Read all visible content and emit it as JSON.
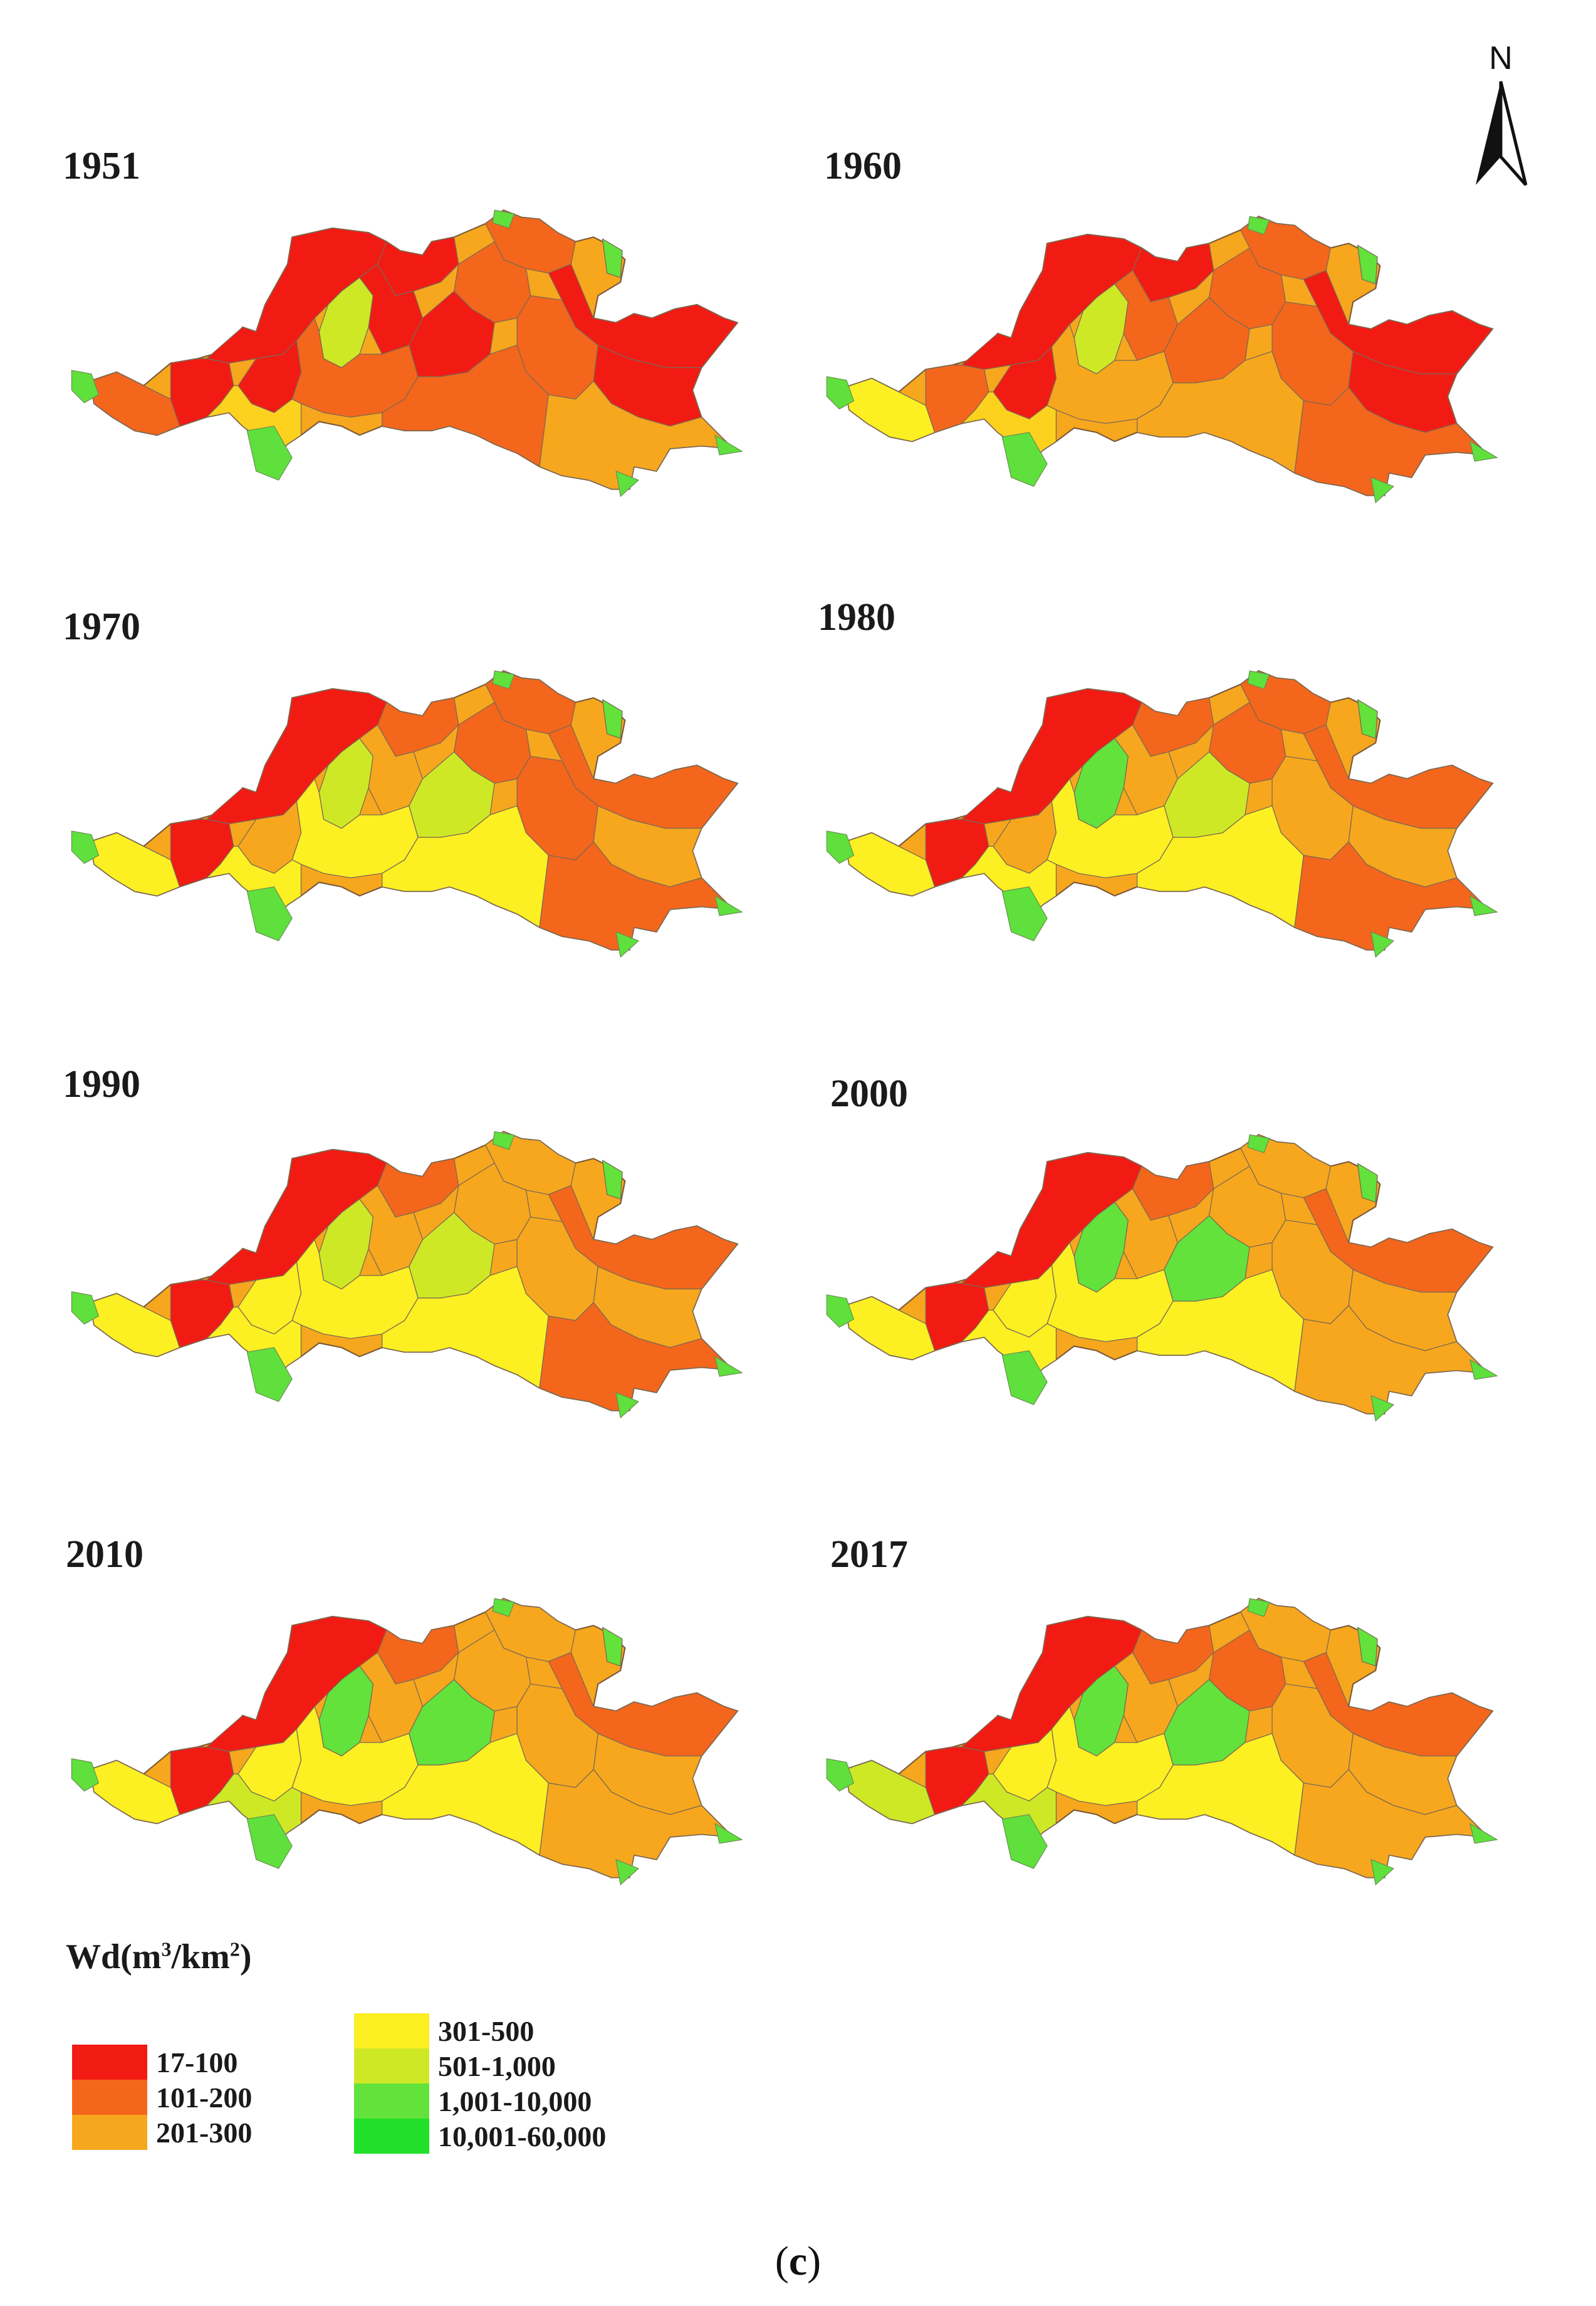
{
  "north_arrow": {
    "label": "N"
  },
  "panels": [
    {
      "year": "1951",
      "fills": [
        "#f21b14",
        "#f21b14",
        "#f4661b",
        "#f21b14",
        "#f21b14",
        "#cfe826",
        "#f4661b",
        "#f21b14",
        "#f4661b",
        "#f21b14",
        "#f4661b",
        "#f21b14",
        "#f4661b",
        "#fcd21e",
        "#f21b14",
        "#f4661b",
        "#f7a71d",
        "#62e23a"
      ]
    },
    {
      "year": "1960",
      "fills": [
        "#f21b14",
        "#f21b14",
        "#f4661b",
        "#f4661b",
        "#f21b14",
        "#cfe826",
        "#fcef22",
        "#f4661b",
        "#f4661b",
        "#f21b14",
        "#f4661b",
        "#f21b14",
        "#f7a71d",
        "#fcd21e",
        "#f4661b",
        "#f7a71d",
        "#f4661b",
        "#62e23a"
      ]
    },
    {
      "year": "1970",
      "fills": [
        "#f21b14",
        "#f4661b",
        "#f4661b",
        "#f21b14",
        "#f7a71d",
        "#cfe826",
        "#fcef22",
        "#f7a71d",
        "#f4661b",
        "#f4661b",
        "#f4661b",
        "#f7a71d",
        "#fcef22",
        "#fcef22",
        "#cfe826",
        "#fcef22",
        "#f4661b",
        "#62e23a"
      ]
    },
    {
      "year": "1980",
      "fills": [
        "#f21b14",
        "#f4661b",
        "#f4661b",
        "#f21b14",
        "#f7a71d",
        "#62e23a",
        "#fcef22",
        "#f7a71d",
        "#f4661b",
        "#f4661b",
        "#f7a71d",
        "#f7a71d",
        "#fcef22",
        "#fcef22",
        "#cfe826",
        "#fcef22",
        "#f4661b",
        "#62e23a"
      ]
    },
    {
      "year": "1990",
      "fills": [
        "#f21b14",
        "#f4661b",
        "#f7a71d",
        "#f21b14",
        "#fcef22",
        "#cfe826",
        "#fcef22",
        "#f7a71d",
        "#f7a71d",
        "#f4661b",
        "#f7a71d",
        "#f7a71d",
        "#fcef22",
        "#fcef22",
        "#cfe826",
        "#fcef22",
        "#f4661b",
        "#62e23a"
      ]
    },
    {
      "year": "2000",
      "fills": [
        "#f21b14",
        "#f4661b",
        "#f7a71d",
        "#f21b14",
        "#fcef22",
        "#62e23a",
        "#fcef22",
        "#f7a71d",
        "#f7a71d",
        "#f4661b",
        "#f7a71d",
        "#f7a71d",
        "#fcef22",
        "#fcef22",
        "#62e23a",
        "#fcef22",
        "#f7a71d",
        "#62e23a"
      ]
    },
    {
      "year": "2010",
      "fills": [
        "#f21b14",
        "#f4661b",
        "#f7a71d",
        "#f21b14",
        "#fcef22",
        "#62e23a",
        "#fcef22",
        "#f7a71d",
        "#f7a71d",
        "#f4661b",
        "#f7a71d",
        "#f7a71d",
        "#fcef22",
        "#cfe826",
        "#62e23a",
        "#fcef22",
        "#f7a71d",
        "#62e23a"
      ]
    },
    {
      "year": "2017",
      "fills": [
        "#f21b14",
        "#f4661b",
        "#f7a71d",
        "#f21b14",
        "#fcef22",
        "#62e23a",
        "#cfe826",
        "#f7a71d",
        "#f4661b",
        "#f4661b",
        "#f7a71d",
        "#f7a71d",
        "#fcef22",
        "#cfe826",
        "#62e23a",
        "#fcef22",
        "#f7a71d",
        "#62e23a"
      ]
    }
  ],
  "legend": {
    "title_prefix": "Wd(m",
    "title_sup1": "3",
    "title_mid": "/km",
    "title_sup2": "2",
    "title_suffix": ")",
    "classes": [
      {
        "label": "17-100",
        "color": "#f21b14"
      },
      {
        "label": "101-200",
        "color": "#f4661b"
      },
      {
        "label": "201-300",
        "color": "#f7a71d"
      },
      {
        "label": "301-500",
        "color": "#fcef22"
      },
      {
        "label": "501-1,000",
        "color": "#cfe826"
      },
      {
        "label": "1,001-10,000",
        "color": "#62e23a"
      },
      {
        "label": "10,001-60,000",
        "color": "#22e02a"
      }
    ]
  },
  "caption": {
    "open": "(",
    "letter": "c",
    "close": ")"
  }
}
